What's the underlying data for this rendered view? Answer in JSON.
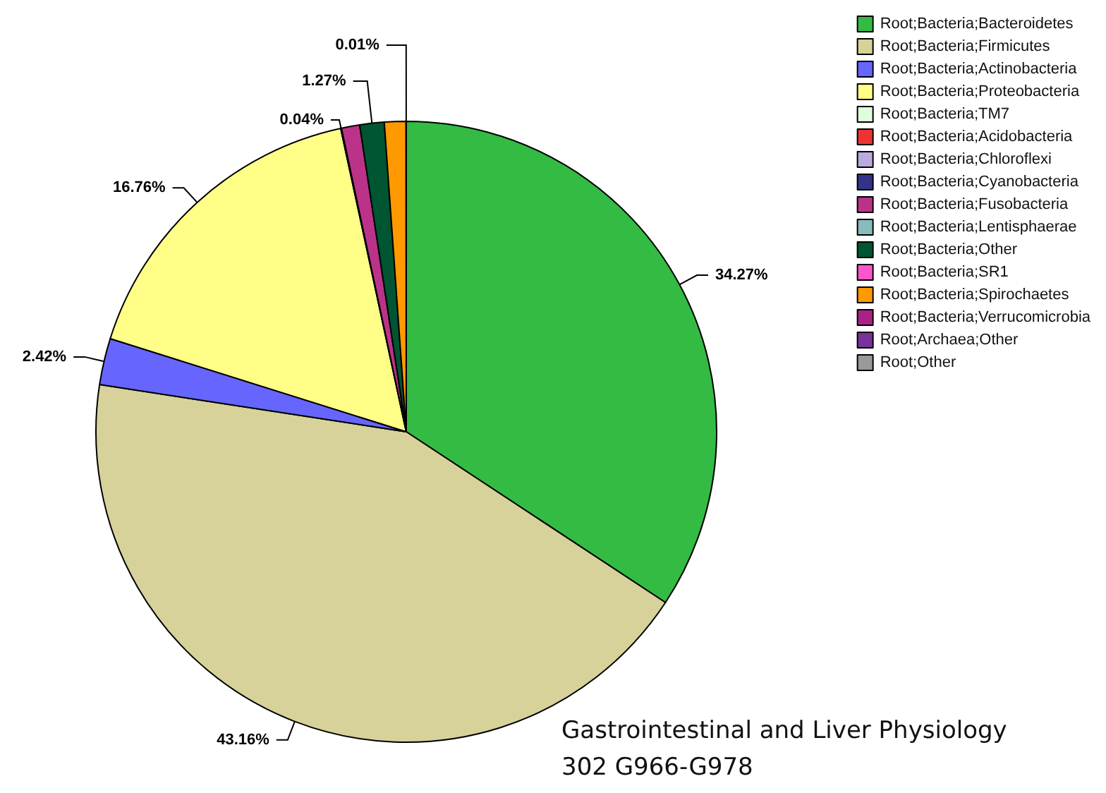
{
  "chart_data": {
    "type": "pie",
    "categories": [
      "Root;Bacteria;Bacteroidetes",
      "Root;Bacteria;Firmicutes",
      "Root;Bacteria;Actinobacteria",
      "Root;Bacteria;Proteobacteria",
      "Root;Bacteria;TM7",
      "Root;Bacteria;Acidobacteria",
      "Root;Bacteria;Chloroflexi",
      "Root;Bacteria;Cyanobacteria",
      "Root;Bacteria;Fusobacteria",
      "Root;Bacteria;Lentisphaerae",
      "Root;Bacteria;Other",
      "Root;Bacteria;SR1",
      "Root;Bacteria;Spirochaetes",
      "Root;Bacteria;Verrucomicrobia",
      "Root;Archaea;Other",
      "Root;Other"
    ],
    "values": [
      34.27,
      43.16,
      2.42,
      16.76,
      0,
      0,
      0,
      0.04,
      0.95,
      0,
      1.27,
      0,
      1.12,
      0.01,
      0,
      0
    ],
    "value_labels": [
      "34.27%",
      "43.16%",
      "2.42%",
      "16.76%",
      null,
      null,
      null,
      "0.04%",
      null,
      null,
      "1.27%",
      null,
      null,
      "0.01%",
      null,
      null
    ],
    "colors": [
      "#33bb44",
      "#d6d29a",
      "#6666ff",
      "#ffff88",
      "#ddffdd",
      "#ee3333",
      "#bbaadd",
      "#333388",
      "#bb3388",
      "#88bbbb",
      "#005533",
      "#ff55cc",
      "#ff9900",
      "#aa2288",
      "#773399",
      "#999999"
    ],
    "legend": "top right",
    "annotations": [
      "Gastrointestinal and Liver Physiology",
      "302  G966-G978"
    ]
  }
}
